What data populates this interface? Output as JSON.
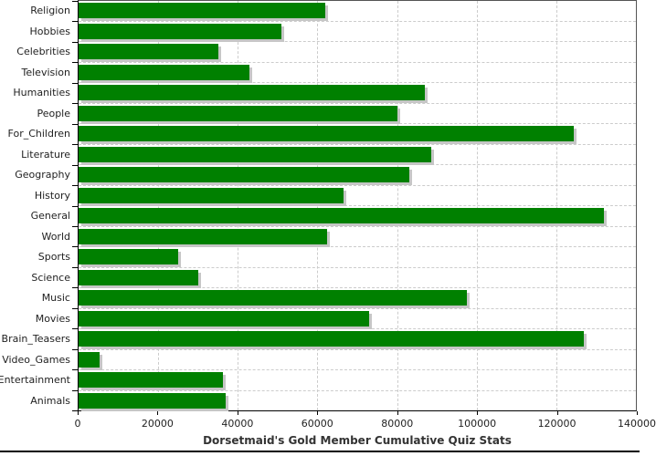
{
  "chart_data": {
    "type": "bar",
    "orientation": "horizontal",
    "title": "Dorsetmaid's Gold Member Cumulative Quiz Stats",
    "categories": [
      "Religion",
      "Hobbies",
      "Celebrities",
      "Television",
      "Humanities",
      "People",
      "For_Children",
      "Literature",
      "Geography",
      "History",
      "General",
      "World",
      "Sports",
      "Science",
      "Music",
      "Movies",
      "Brain_Teasers",
      "Video_Games",
      "Entertainment",
      "Animals"
    ],
    "values": [
      62000,
      51000,
      35000,
      43000,
      87000,
      80000,
      124500,
      88500,
      83000,
      66500,
      132000,
      62500,
      25000,
      30000,
      97500,
      73000,
      127000,
      5300,
      36300,
      37000
    ],
    "xlabel": "",
    "ylabel": "",
    "xlim": [
      0,
      140000
    ],
    "x_ticks": [
      0,
      20000,
      40000,
      60000,
      80000,
      100000,
      120000,
      140000
    ],
    "x_tick_labels": [
      "0",
      "20000",
      "40000",
      "60000",
      "80000",
      "100000",
      "120000",
      "140000"
    ],
    "grid": "dashed",
    "legend_position": "none",
    "bar_color": "#008000",
    "bar_shadow_color": "#c6c6c6",
    "gridline_color": "#cccccc",
    "axis_color": "#000000",
    "title_color": "#333333",
    "background_color": "#ffffff"
  }
}
